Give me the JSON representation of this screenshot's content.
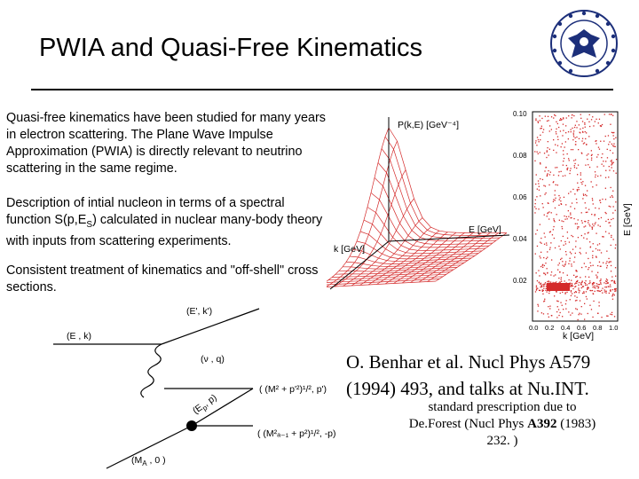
{
  "slide": {
    "title": "PWIA and Quasi-Free Kinematics",
    "paragraph1": "Quasi-free kinematics have been studied for many years in electron scattering. The Plane Wave Impulse Approximation (PWIA) is directly relevant to neutrino scattering in the same regime.",
    "paragraph2_a": "Description of intial nucleon in terms of a spectral function S(p,E",
    "paragraph2_sub": "S",
    "paragraph2_b": ") calculated in nuclear many-body theory with inputs from scattering experiments.",
    "paragraph3": "Consistent treatment of kinematics and \"off-shell\" cross sections.",
    "reference_line1": "O. Benhar et al.  Nucl Phys A579",
    "reference_line2": "(1994) 493, and talks at Nu.INT.",
    "prescription_a": "standard prescription due to De.Forest (Nucl Phys ",
    "prescription_bold": "A392",
    "prescription_b": " (1983) 232. )"
  },
  "plot3d": {
    "zlabel": "P(k,E) [GeV⁻⁴]",
    "elabel": "E [GeV]",
    "klabel": "k [GeV]"
  },
  "scatter": {
    "ylabel": "E [GeV]",
    "xlabel": "k [GeV]",
    "yticks": [
      "0.10",
      "0.08",
      "0.06",
      "0.04",
      "0.02"
    ],
    "xticks": [
      "0.0",
      "0.2",
      "0.4",
      "0.6",
      "0.8",
      "1.0"
    ]
  },
  "diagram": {
    "label_Ek": "(E , k)",
    "label_Ekprime": "(E', k')",
    "label_nuq": "(ν , q)",
    "label_Ep": "(E",
    "label_Ep_sub": "p",
    "label_Ep_end": ", p)",
    "label_MA0": "(M",
    "label_MA0_sub": "A",
    "label_MA0_end": " , 0 )",
    "label_upper": "( (M² + p'²)¹/², p')",
    "label_lower": "( (M²ₐ₋₁ + p²)¹/², -p)"
  },
  "colors": {
    "plot_red": "#d42a2a",
    "text": "#000000"
  }
}
